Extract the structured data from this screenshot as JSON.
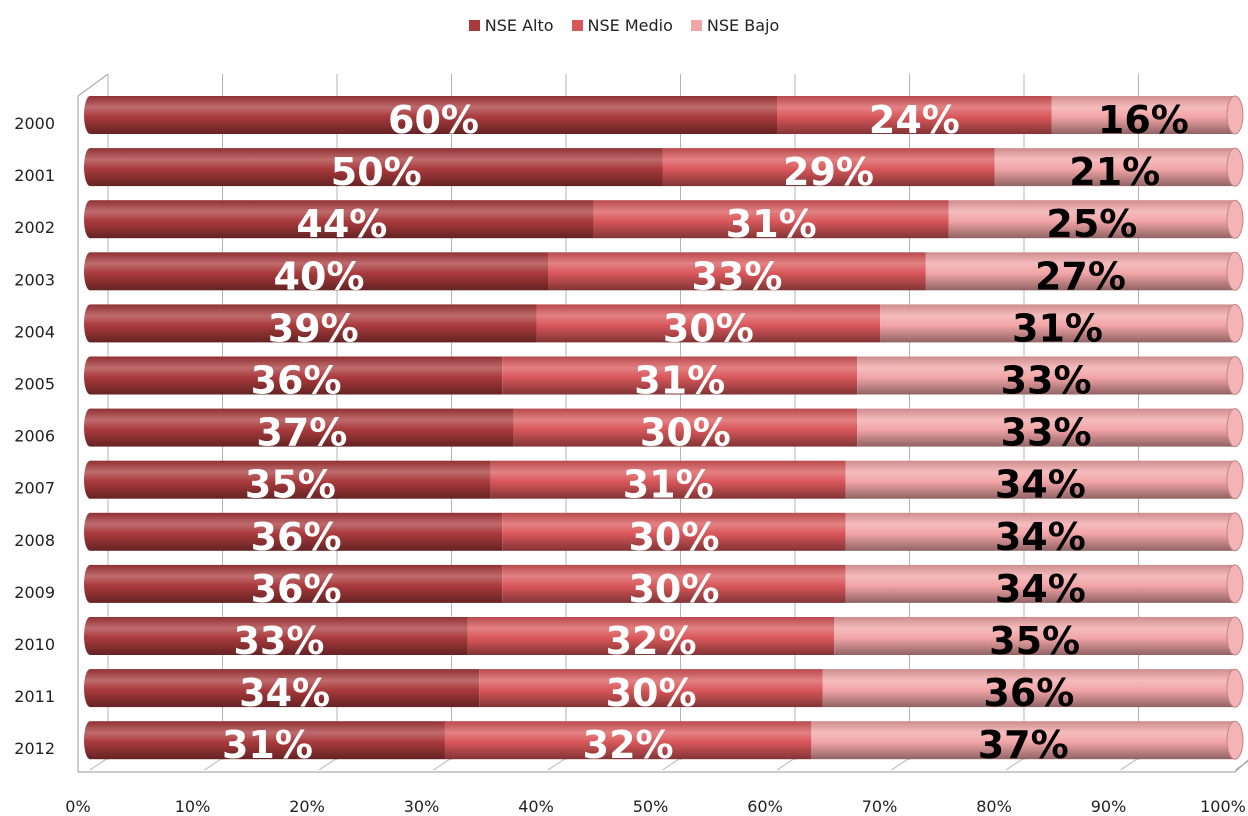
{
  "chart_data": {
    "type": "bar",
    "orientation": "horizontal",
    "stacked": "percent",
    "categories": [
      "2000",
      "2001",
      "2002",
      "2003",
      "2004",
      "2005",
      "2006",
      "2007",
      "2008",
      "2009",
      "2010",
      "2011",
      "2012"
    ],
    "series": [
      {
        "name": "NSE Alto",
        "color": "#a93a3c",
        "label_color": "#ffffff",
        "values": [
          60,
          50,
          44,
          40,
          39,
          36,
          37,
          35,
          36,
          36,
          33,
          34,
          31
        ],
        "labels": [
          "60%",
          "50%",
          "44%",
          "40%",
          "39%",
          "36%",
          "37%",
          "35%",
          "36%",
          "36%",
          "33%",
          "34%",
          "31%"
        ]
      },
      {
        "name": "NSE Medio",
        "color": "#d9575a",
        "label_color": "#ffffff",
        "values": [
          24,
          29,
          31,
          33,
          30,
          31,
          30,
          31,
          30,
          30,
          32,
          30,
          32
        ],
        "labels": [
          "24%",
          "29%",
          "31%",
          "33%",
          "30%",
          "31%",
          "30%",
          "31%",
          "30%",
          "30%",
          "32%",
          "30%",
          "32%"
        ]
      },
      {
        "name": "NSE Bajo",
        "color": "#f2a5a7",
        "label_color": "#000000",
        "values": [
          16,
          21,
          25,
          27,
          31,
          33,
          33,
          34,
          34,
          34,
          35,
          36,
          37
        ],
        "labels": [
          "16%",
          "21%",
          "25%",
          "27%",
          "31%",
          "33%",
          "33%",
          "34%",
          "34%",
          "34%",
          "35%",
          "36%",
          "37%"
        ]
      }
    ],
    "x_ticks": [
      "0%",
      "10%",
      "20%",
      "30%",
      "40%",
      "50%",
      "60%",
      "70%",
      "80%",
      "90%",
      "100%"
    ],
    "xlim": [
      0,
      100
    ],
    "grid": true,
    "legend_position": "top-center"
  }
}
